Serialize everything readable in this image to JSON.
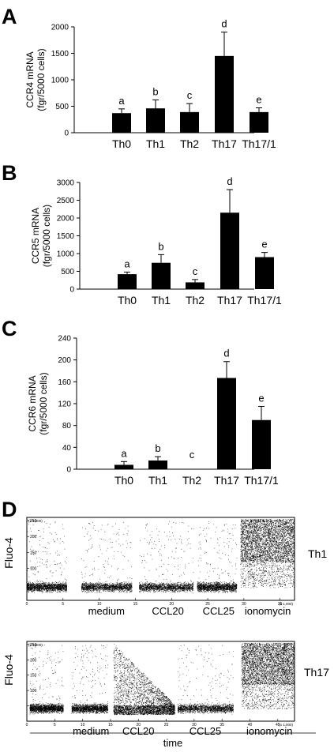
{
  "chart_data": [
    {
      "panel": "A",
      "type": "bar",
      "ylabel_lines": [
        "CCR4 mRNA",
        "(fgr/5000 cells)"
      ],
      "categories": [
        "Th0",
        "Th1",
        "Th2",
        "Th17",
        "Th17/1"
      ],
      "values": [
        370,
        460,
        390,
        1450,
        390
      ],
      "errors": [
        80,
        160,
        160,
        450,
        80
      ],
      "letters": [
        "a",
        "b",
        "c",
        "d",
        "e"
      ],
      "ylim": [
        0,
        2000
      ],
      "yticks": [
        0,
        500,
        1000,
        1500,
        2000
      ]
    },
    {
      "panel": "B",
      "type": "bar",
      "ylabel_lines": [
        "CCR5 mRNA",
        "(fgr/5000 cells)"
      ],
      "categories": [
        "Th0",
        "Th1",
        "Th2",
        "Th17",
        "Th17/1"
      ],
      "values": [
        420,
        740,
        190,
        2150,
        900
      ],
      "errors": [
        60,
        230,
        80,
        650,
        130
      ],
      "letters": [
        "a",
        "b",
        "c",
        "d",
        "e"
      ],
      "ylim": [
        0,
        3000
      ],
      "yticks": [
        0,
        500,
        1000,
        1500,
        2000,
        2500,
        3000
      ]
    },
    {
      "panel": "C",
      "type": "bar",
      "ylabel_lines": [
        "CCR6 mRNA",
        "(fgr/5000 cells)"
      ],
      "categories": [
        "Th0",
        "Th1",
        "Th2",
        "Th17",
        "Th17/1"
      ],
      "values": [
        8,
        16,
        0,
        167,
        90
      ],
      "errors": [
        6,
        7,
        0,
        30,
        25
      ],
      "letters": [
        "a",
        "b",
        "c",
        "d",
        "e"
      ],
      "ylim": [
        0,
        240
      ],
      "yticks": [
        0,
        40,
        80,
        120,
        160,
        200,
        240
      ]
    },
    {
      "panel": "D",
      "type": "scatter",
      "ylabel": "Fluo-4",
      "xlabel": "time",
      "axis_multiplier": "(x 1,000)",
      "plots": [
        {
          "name": "Th1",
          "xticks": [
            "0",
            "5",
            "10",
            "15",
            "20",
            "25",
            "30",
            "35"
          ],
          "yticks": [
            "50",
            "100",
            "150",
            "200",
            "250"
          ],
          "segments": [
            "",
            "medium",
            "CCL20",
            "CCL25",
            "ionomycin"
          ]
        },
        {
          "name": "Th17",
          "xticks": [
            "0",
            "5",
            "10",
            "15",
            "20",
            "25",
            "30",
            "35",
            "40",
            "45"
          ],
          "yticks": [
            "50",
            "100",
            "150",
            "200",
            "250"
          ],
          "segments": [
            "",
            "medium",
            "CCL20",
            "CCL25",
            "ionomycin"
          ]
        }
      ]
    }
  ],
  "panel_letters": [
    "A",
    "B",
    "C",
    "D"
  ]
}
